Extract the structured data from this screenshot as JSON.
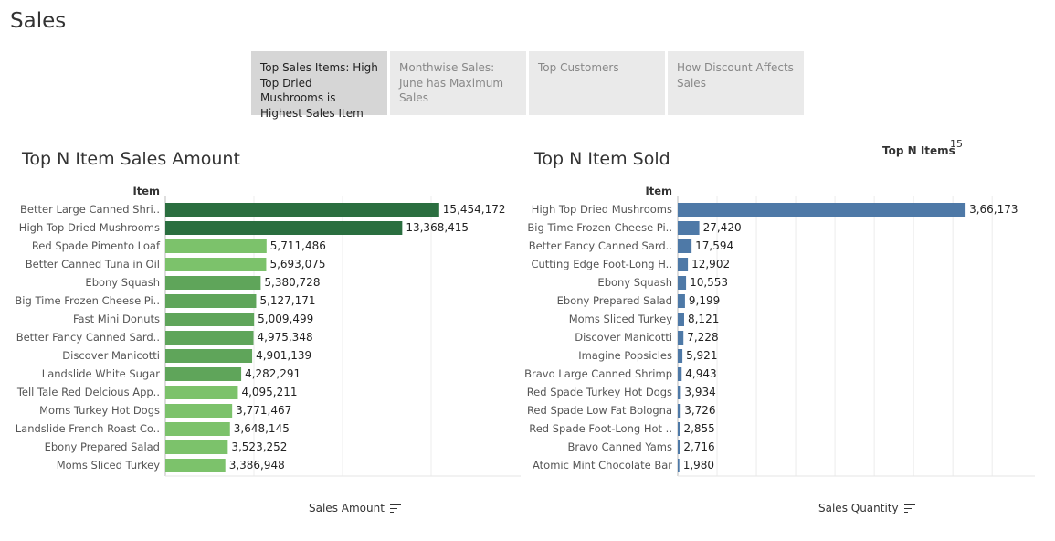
{
  "page": {
    "title": "Sales"
  },
  "tabs": [
    {
      "label": "Top Sales Items: High Top Dried Mushrooms is Highest Sales Item",
      "active": true
    },
    {
      "label": "Monthwise Sales: June has Maximum Sales",
      "active": false
    },
    {
      "label": "Top Customers",
      "active": false
    },
    {
      "label": "How Discount Affects Sales",
      "active": false
    }
  ],
  "parameter": {
    "label": "Top N Items",
    "value": "15"
  },
  "colors": {
    "dark_green": "#2a6e3f",
    "mid_green": "#5fa55a",
    "light_green": "#7cc26b",
    "blue": "#4e79a7"
  },
  "chart_data": [
    {
      "type": "bar",
      "orientation": "horizontal",
      "title": "Top N Item Sales Amount",
      "category_header": "Item",
      "xlabel": "Sales Amount",
      "xlim": [
        0,
        19500000
      ],
      "x_ticks": [
        0,
        5000000,
        10000000,
        15000000
      ],
      "x_tick_labels": [
        "0M",
        "5M",
        "10M",
        "15M"
      ],
      "categories": [
        "Better Large Canned Shri..",
        "High Top Dried Mushrooms",
        "Red Spade Pimento Loaf",
        "Better Canned Tuna in Oil",
        "Ebony Squash",
        "Big Time Frozen Cheese Pi..",
        "Fast Mini Donuts",
        "Better Fancy Canned Sard..",
        "Discover Manicotti",
        "Landslide White Sugar",
        "Tell Tale Red Delcious App..",
        "Moms Turkey Hot Dogs",
        "Landslide French Roast Co..",
        "Ebony Prepared Salad",
        "Moms Sliced Turkey"
      ],
      "values": [
        15454172,
        13368415,
        5711486,
        5693075,
        5380728,
        5127171,
        5009499,
        4975348,
        4901139,
        4282291,
        4095211,
        3771467,
        3648145,
        3523252,
        3386948
      ],
      "value_labels": [
        "15,454,172",
        "13,368,415",
        "5,711,486",
        "5,693,075",
        "5,380,728",
        "5,127,171",
        "5,009,499",
        "4,975,348",
        "4,901,139",
        "4,282,291",
        "4,095,211",
        "3,771,467",
        "3,648,145",
        "3,523,252",
        "3,386,948"
      ],
      "bar_colors": [
        "#2a6e3f",
        "#2a6e3f",
        "#7cc26b",
        "#7cc26b",
        "#5fa55a",
        "#5fa55a",
        "#5fa55a",
        "#5fa55a",
        "#5fa55a",
        "#5fa55a",
        "#7cc26b",
        "#7cc26b",
        "#7cc26b",
        "#7cc26b",
        "#7cc26b"
      ],
      "grid": true
    },
    {
      "type": "bar",
      "orientation": "horizontal",
      "title": "Top N Item Sold",
      "category_header": "Item",
      "xlabel": "Sales Quantity",
      "xlim": [
        0,
        450000
      ],
      "x_ticks": [
        0,
        50000,
        100000,
        150000,
        200000,
        250000,
        300000,
        350000,
        400000
      ],
      "x_tick_labels": [
        "0K",
        "50K",
        "100K",
        "150K",
        "200K",
        "250K",
        "300K",
        "350K",
        "400K"
      ],
      "categories": [
        "High Top Dried Mushrooms",
        "Big Time Frozen Cheese Pi..",
        "Better Fancy Canned Sard..",
        "Cutting Edge Foot-Long H..",
        "Ebony Squash",
        "Ebony Prepared Salad",
        "Moms Sliced Turkey",
        "Discover Manicotti",
        "Imagine Popsicles",
        "Bravo Large Canned Shrimp",
        "Red Spade Turkey Hot Dogs",
        "Red Spade Low Fat Bologna",
        "Red Spade Foot-Long Hot ..",
        "Bravo Canned Yams",
        "Atomic Mint Chocolate Bar"
      ],
      "values": [
        366173,
        27420,
        17594,
        12902,
        10553,
        9199,
        8121,
        7228,
        5921,
        4943,
        3934,
        3726,
        2855,
        2716,
        1980
      ],
      "value_labels": [
        "3,66,173",
        "27,420",
        "17,594",
        "12,902",
        "10,553",
        "9,199",
        "8,121",
        "7,228",
        "5,921",
        "4,943",
        "3,934",
        "3,726",
        "2,855",
        "2,716",
        "1,980"
      ],
      "bar_colors": [
        "#4e79a7",
        "#4e79a7",
        "#4e79a7",
        "#4e79a7",
        "#4e79a7",
        "#4e79a7",
        "#4e79a7",
        "#4e79a7",
        "#4e79a7",
        "#4e79a7",
        "#4e79a7",
        "#4e79a7",
        "#4e79a7",
        "#4e79a7",
        "#4e79a7"
      ],
      "grid": true
    }
  ]
}
